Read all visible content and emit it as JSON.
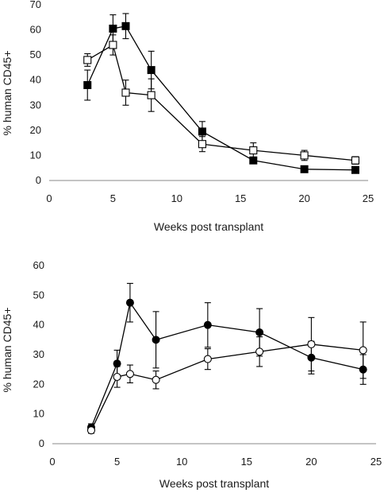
{
  "chart_data": [
    {
      "type": "line",
      "xlabel": "Weeks post transplant",
      "ylabel": "% human CD45+",
      "xlim": [
        0,
        25
      ],
      "ylim": [
        0,
        70
      ],
      "xticks": [
        0,
        5,
        10,
        15,
        20,
        25
      ],
      "yticks": [
        0,
        10,
        20,
        30,
        40,
        50,
        60,
        70
      ],
      "grid": false,
      "legend": "none",
      "series": [
        {
          "marker": "filled-square",
          "x": [
            3,
            5,
            6,
            8,
            12,
            16,
            20,
            24
          ],
          "y": [
            38,
            60.5,
            61.5,
            44,
            19.5,
            8,
            4.5,
            4.2
          ],
          "error": [
            6,
            5.5,
            5,
            7.5,
            4,
            1,
            0.8,
            0.8
          ]
        },
        {
          "marker": "open-square",
          "x": [
            3,
            5,
            6,
            8,
            12,
            16,
            20,
            24
          ],
          "y": [
            48,
            54,
            35,
            34,
            14.5,
            12,
            10,
            8
          ],
          "error": [
            2.5,
            4,
            5,
            6.5,
            3,
            3,
            2,
            1.5
          ]
        }
      ]
    },
    {
      "type": "line",
      "xlabel": "Weeks post transplant",
      "ylabel": "% human CD45+",
      "xlim": [
        0,
        25
      ],
      "ylim": [
        0,
        60
      ],
      "xticks": [
        0,
        5,
        10,
        15,
        20,
        25
      ],
      "yticks": [
        0,
        10,
        20,
        30,
        40,
        50,
        60
      ],
      "grid": false,
      "legend": "none",
      "series": [
        {
          "marker": "filled-circle",
          "x": [
            3,
            5,
            6,
            8,
            12,
            16,
            20,
            24
          ],
          "y": [
            5.5,
            27,
            47.5,
            35,
            40,
            37.5,
            29,
            25
          ],
          "error": [
            1.2,
            4.5,
            6.5,
            9.5,
            7.5,
            8,
            5.5,
            5
          ]
        },
        {
          "marker": "open-circle",
          "x": [
            3,
            5,
            6,
            8,
            12,
            16,
            20,
            24
          ],
          "y": [
            4.5,
            22.5,
            23.5,
            21.5,
            28.5,
            31,
            33.5,
            31.5
          ],
          "error": [
            1,
            3.5,
            3,
            3,
            3.5,
            5,
            9,
            9.5
          ]
        }
      ]
    }
  ]
}
